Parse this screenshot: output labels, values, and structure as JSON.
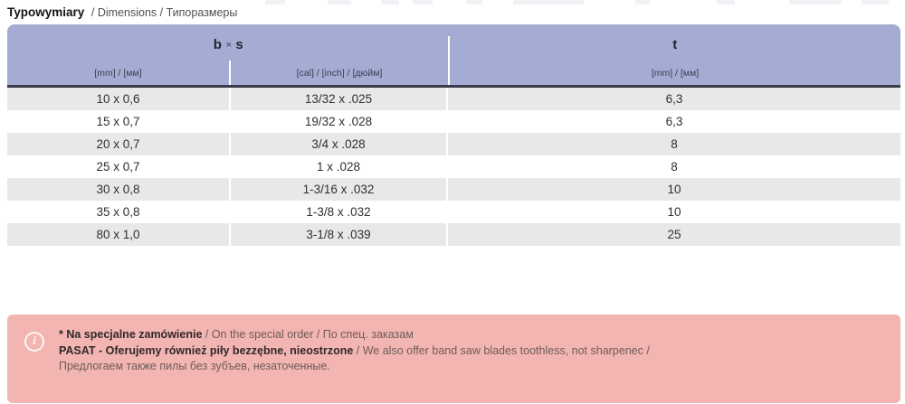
{
  "page": {
    "title_primary": "Typowymiary",
    "title_secondary": "/ Dimensions / Типоразмеры"
  },
  "table": {
    "header": {
      "group_bs_b": "b",
      "group_bs_x": "×",
      "group_bs_s": "s",
      "sub_mm": "[mm] / [мм]",
      "sub_inch": "[cal] / [inch] / [дюйм]",
      "group_t": "t",
      "sub_t_mm": "[mm] / [мм]"
    },
    "rows": [
      {
        "mm": "10 x 0,6",
        "inch": "13/32 x .025",
        "t": "6,3"
      },
      {
        "mm": "15 x 0,7",
        "inch": "19/32 x .028",
        "t": "6,3"
      },
      {
        "mm": "20 x 0,7",
        "inch": "3/4 x .028",
        "t": "8"
      },
      {
        "mm": "25 x 0,7",
        "inch": "1 x .028",
        "t": "8"
      },
      {
        "mm": "30 x 0,8",
        "inch": "1-3/16 x .032",
        "t": "10"
      },
      {
        "mm": "35 x 0,8",
        "inch": "1-3/8 x .032",
        "t": "10"
      },
      {
        "mm": "80 x 1,0",
        "inch": "3-1/8 x .039",
        "t": "25"
      }
    ]
  },
  "note": {
    "icon_glyph": "i",
    "line1_bold": "* Na specjalne zamówienie",
    "line1_rest": " / On the special order / По спец. заказам",
    "line2_bold": "PASAT - Oferujemy również piły bezzębne, nieostrzone",
    "line2_rest": " / We also offer band saw blades toothless, not sharpenec /",
    "line3": "Предлогаем также пилы без зубъев, незаточенные."
  },
  "colors": {
    "header_bg": "#a5acd3",
    "header_divider": "#ffffff",
    "header_underline": "#3a3a49",
    "row_alt_bg": "#e8e8ea",
    "note_bg": "#f2b5b1",
    "note_text_bold": "#32282a",
    "note_text_regular": "#6e5c59",
    "body_text": "#303033"
  }
}
